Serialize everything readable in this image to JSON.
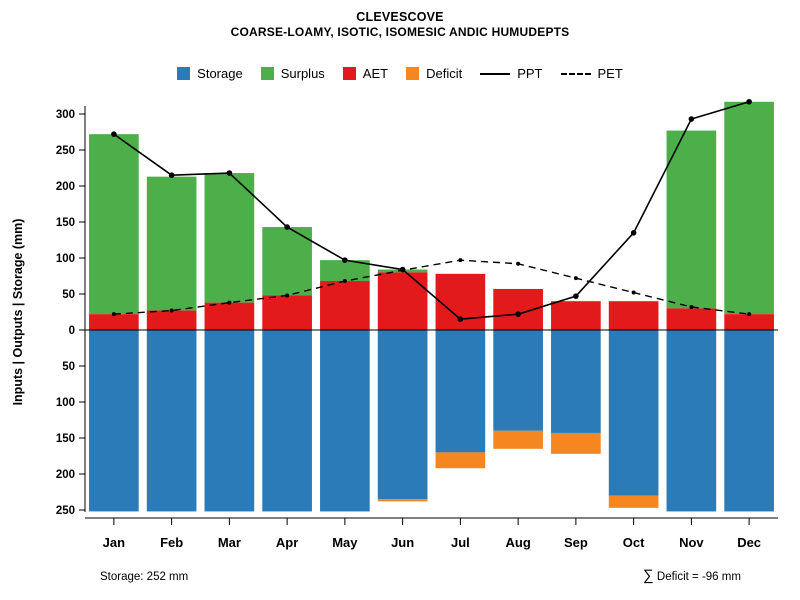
{
  "title": "CLEVESCOVE",
  "subtitle": "COARSE-LOAMY, ISOTIC, ISOMESIC ANDIC HUMUDEPTS",
  "legend": {
    "items": [
      {
        "label": "Storage",
        "color": "#2b7bb9",
        "type": "box"
      },
      {
        "label": "Surplus",
        "color": "#4daf4a",
        "type": "box"
      },
      {
        "label": "AET",
        "color": "#e31a1c",
        "type": "box"
      },
      {
        "label": "Deficit",
        "color": "#f6861f",
        "type": "box"
      },
      {
        "label": "PPT",
        "color": "#000000",
        "type": "line-solid"
      },
      {
        "label": "PET",
        "color": "#000000",
        "type": "line-dashed"
      }
    ]
  },
  "chart_data": {
    "type": "bar",
    "title": "CLEVESCOVE",
    "subtitle": "COARSE-LOAMY, ISOTIC, ISOMESIC ANDIC HUMUDEPTS",
    "categories": [
      "Jan",
      "Feb",
      "Mar",
      "Apr",
      "May",
      "Jun",
      "Jul",
      "Aug",
      "Sep",
      "Oct",
      "Nov",
      "Dec"
    ],
    "series": [
      {
        "name": "AET",
        "type": "bar-up",
        "color": "#e31a1c",
        "values": [
          22,
          27,
          38,
          48,
          68,
          80,
          78,
          57,
          40,
          40,
          30,
          22
        ]
      },
      {
        "name": "Surplus",
        "type": "bar-up-stacked",
        "color": "#4daf4a",
        "values": [
          250,
          186,
          180,
          95,
          29,
          4,
          0,
          0,
          0,
          0,
          247,
          295
        ]
      },
      {
        "name": "Storage",
        "type": "bar-down",
        "color": "#2b7bb9",
        "values": [
          252,
          252,
          252,
          252,
          252,
          235,
          170,
          140,
          143,
          230,
          252,
          252
        ]
      },
      {
        "name": "Deficit",
        "type": "bar-down-stacked",
        "color": "#f6861f",
        "values": [
          0,
          0,
          0,
          0,
          0,
          3,
          22,
          25,
          29,
          17,
          0,
          0
        ]
      },
      {
        "name": "PPT",
        "type": "line",
        "style": "solid",
        "color": "#000000",
        "values": [
          272,
          215,
          218,
          143,
          97,
          84,
          15,
          22,
          47,
          135,
          293,
          317
        ]
      },
      {
        "name": "PET",
        "type": "line",
        "style": "dashed",
        "color": "#000000",
        "values": [
          22,
          27,
          38,
          48,
          68,
          83,
          97,
          92,
          72,
          52,
          32,
          22
        ]
      }
    ],
    "ylabel": "Inputs | Outputs | Storage (mm)",
    "xlabel": "",
    "y_upper_ticks": [
      0,
      50,
      100,
      150,
      200,
      250,
      300
    ],
    "y_lower_ticks": [
      50,
      100,
      150,
      200,
      250
    ],
    "y_upper_max": 330,
    "y_lower_max": 260,
    "grid": false,
    "legend_position": "top"
  },
  "footer": {
    "storage_note": "Storage: 252 mm",
    "deficit_sigma": "∑",
    "deficit_text": " Deficit = -96 mm"
  }
}
